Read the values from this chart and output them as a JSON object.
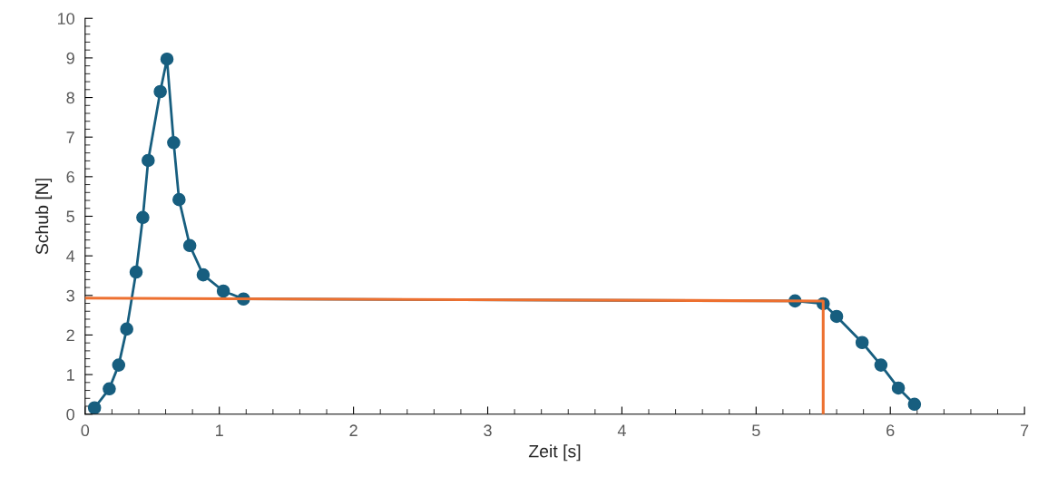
{
  "chart_data": {
    "type": "line",
    "xlabel": "Zeit [s]",
    "ylabel": "Schub [N]",
    "xlim": [
      0,
      7
    ],
    "ylim": [
      0,
      10
    ],
    "xticks": [
      0,
      1,
      2,
      3,
      4,
      5,
      6,
      7
    ],
    "yticks": [
      0,
      1,
      2,
      3,
      4,
      5,
      6,
      7,
      8,
      9,
      10
    ],
    "grid": false,
    "legend": false,
    "marker": "circle",
    "series": [
      {
        "color": "#175e7f",
        "line_style": "solid",
        "x": [
          0.07,
          0.18,
          0.25,
          0.31,
          0.38,
          0.43,
          0.47,
          0.56,
          0.61,
          0.66,
          0.7,
          0.78,
          0.88,
          1.03,
          1.18,
          5.29,
          5.5,
          5.6,
          5.79,
          5.93,
          6.06,
          6.18
        ],
        "values": [
          0.16,
          0.64,
          1.24,
          2.15,
          3.59,
          4.97,
          6.41,
          8.15,
          8.97,
          6.86,
          5.42,
          4.26,
          3.52,
          3.11,
          2.91,
          2.86,
          2.79,
          2.47,
          1.81,
          1.24,
          0.66,
          0.25
        ]
      },
      {
        "color": "#ed7030",
        "marker": "none",
        "line_style": "solid",
        "x": [
          0,
          5.5,
          5.5
        ],
        "values": [
          2.93,
          2.86,
          0
        ]
      }
    ]
  }
}
